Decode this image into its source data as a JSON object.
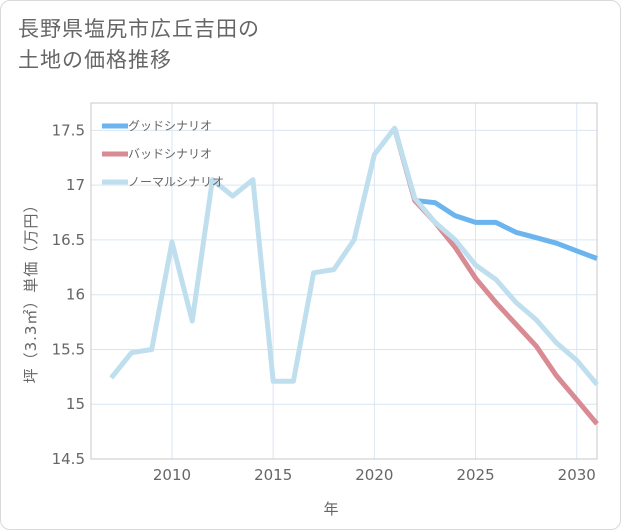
{
  "title": {
    "line1": "長野県塩尻市広丘吉田の",
    "line2": "土地の価格推移"
  },
  "chart_data": {
    "type": "line",
    "xlabel": "年",
    "ylabel": "坪（3.3㎡）単価（万円）",
    "xlim": [
      2006,
      2031
    ],
    "ylim": [
      14.5,
      17.75
    ],
    "x_ticks": [
      2010,
      2015,
      2020,
      2025,
      2030
    ],
    "x_tick_labels": [
      "2010",
      "2015",
      "2020",
      "2025",
      "2030"
    ],
    "y_ticks": [
      14.5,
      15,
      15.5,
      16,
      16.5,
      17,
      17.5
    ],
    "y_tick_labels": [
      "14.5",
      "15",
      "15.5",
      "16",
      "16.5",
      "17",
      "17.5"
    ],
    "grid": true,
    "legend_position": "top-left",
    "series": [
      {
        "name": "グッドシナリオ",
        "color": "#6cb4ee",
        "x": [
          2021,
          2022,
          2023,
          2024,
          2025,
          2026,
          2027,
          2028,
          2029,
          2030,
          2031
        ],
        "values": [
          17.52,
          16.86,
          16.84,
          16.72,
          16.66,
          16.66,
          16.57,
          16.52,
          16.47,
          16.4,
          16.33
        ]
      },
      {
        "name": "バッドシナリオ",
        "color": "#d98b94",
        "x": [
          2021,
          2022,
          2023,
          2024,
          2025,
          2026,
          2027,
          2028,
          2029,
          2030,
          2031
        ],
        "values": [
          17.52,
          16.86,
          16.66,
          16.43,
          16.15,
          15.93,
          15.73,
          15.53,
          15.26,
          15.04,
          14.82
        ]
      },
      {
        "name": "ノーマルシナリオ",
        "color": "#bfdfee",
        "x": [
          2007,
          2008,
          2009,
          2010,
          2011,
          2012,
          2013,
          2014,
          2015,
          2016,
          2017,
          2018,
          2019,
          2020,
          2021,
          2022,
          2023,
          2024,
          2025,
          2026,
          2027,
          2028,
          2029,
          2030,
          2031
        ],
        "values": [
          15.24,
          15.47,
          15.5,
          16.48,
          15.76,
          17.05,
          16.9,
          17.05,
          15.21,
          15.21,
          16.2,
          16.23,
          16.5,
          17.28,
          17.52,
          16.88,
          16.66,
          16.5,
          16.27,
          16.14,
          15.93,
          15.77,
          15.56,
          15.4,
          15.18
        ]
      }
    ]
  }
}
